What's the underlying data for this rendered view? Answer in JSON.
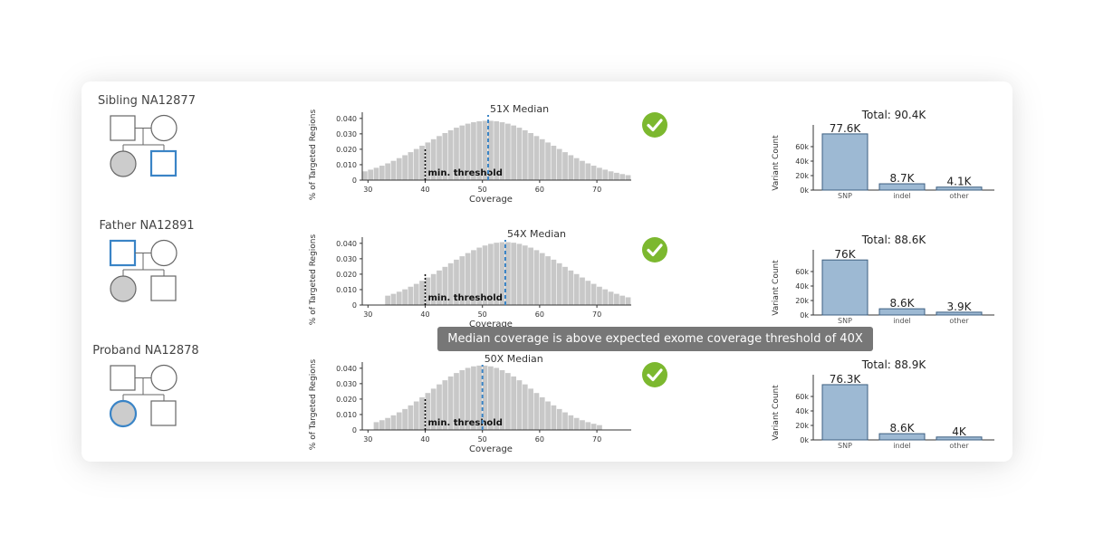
{
  "tooltip": "Median coverage is above expected exome coverage threshold of 40X",
  "colors": {
    "affected_fill": "#cccccc",
    "highlight_stroke": "#3a84c6",
    "pedigree_stroke": "#666666",
    "hist_bar": "#c8c8c8",
    "median_line": "#3a84c6",
    "threshold_line": "#000000",
    "check_green": "#7cb82f",
    "variant_bar_fill": "#9db9d3",
    "variant_bar_stroke": "#3d5f80"
  },
  "rows": [
    {
      "sample_label": "Sibling NA12877",
      "pedigree": {
        "highlight": "child-male"
      },
      "status_icon": "check-circle-icon",
      "coverage": {
        "median_label": "51X Median",
        "median": 51,
        "threshold_label": "min. threshold",
        "threshold": 40,
        "xlabel": "Coverage",
        "ylabel": "% of Targeted Regions",
        "xticks": [
          30,
          40,
          50,
          60,
          70
        ],
        "yticks": [
          "0",
          "0.010",
          "0.020",
          "0.030",
          "0.040"
        ],
        "xrange": [
          29,
          76
        ],
        "yrange": [
          0,
          0.044
        ],
        "bins": [
          29,
          75
        ],
        "mu": 51,
        "sigma": 11.0,
        "peak": 0.0385
      },
      "variants": {
        "total_label": "Total: 90.4K",
        "ylabel": "Variant Count",
        "yticks": [
          "0k",
          "20k",
          "40k",
          "60k"
        ],
        "ymax": 80000,
        "categories": [
          "SNP",
          "indel",
          "other"
        ],
        "values": [
          77600,
          8700,
          4100
        ],
        "value_labels": [
          "77.6K",
          "8.7K",
          "4.1K"
        ]
      }
    },
    {
      "sample_label": "Father NA12891",
      "pedigree": {
        "highlight": "father"
      },
      "status_icon": "check-circle-icon",
      "coverage": {
        "median_label": "54X Median",
        "median": 54,
        "threshold_label": "min. threshold",
        "threshold": 40,
        "xlabel": "Coverage",
        "ylabel": "% of Targeted Regions",
        "xticks": [
          30,
          40,
          50,
          60,
          70
        ],
        "yticks": [
          "0",
          "0.010",
          "0.020",
          "0.030",
          "0.040"
        ],
        "xrange": [
          29,
          76
        ],
        "yrange": [
          0,
          0.044
        ],
        "bins": [
          33,
          75
        ],
        "mu": 54,
        "sigma": 10.5,
        "peak": 0.0408
      },
      "variants": {
        "total_label": "Total: 88.6K",
        "ylabel": "Variant Count",
        "yticks": [
          "0k",
          "20k",
          "40k",
          "60k"
        ],
        "ymax": 80000,
        "categories": [
          "SNP",
          "indel",
          "other"
        ],
        "values": [
          76000,
          8600,
          3900
        ],
        "value_labels": [
          "76K",
          "8.6K",
          "3.9K"
        ]
      }
    },
    {
      "sample_label": "Proband NA12878",
      "pedigree": {
        "highlight": "child-female"
      },
      "status_icon": "check-circle-icon",
      "coverage": {
        "median_label": "50X Median",
        "median": 50,
        "threshold_label": "min. threshold",
        "threshold": 40,
        "xlabel": "Coverage",
        "ylabel": "% of Targeted Regions",
        "xticks": [
          30,
          40,
          50,
          60,
          70
        ],
        "yticks": [
          "0",
          "0.010",
          "0.020",
          "0.030",
          "0.040"
        ],
        "xrange": [
          29,
          76
        ],
        "yrange": [
          0,
          0.044
        ],
        "bins": [
          31,
          70
        ],
        "mu": 50,
        "sigma": 9.0,
        "peak": 0.0418
      },
      "variants": {
        "total_label": "Total: 88.9K",
        "ylabel": "Variant Count",
        "yticks": [
          "0k",
          "20k",
          "40k",
          "60k"
        ],
        "ymax": 80000,
        "categories": [
          "SNP",
          "indel",
          "other"
        ],
        "values": [
          76300,
          8600,
          4000
        ],
        "value_labels": [
          "76.3K",
          "8.6K",
          "4K"
        ]
      }
    }
  ],
  "chart_data": [
    {
      "type": "bar",
      "title": "51X Median",
      "xlabel": "Coverage",
      "ylabel": "% of Targeted Regions",
      "xlim": [
        29,
        76
      ],
      "ylim": [
        0,
        0.044
      ],
      "annotations": [
        "51X Median",
        "min. threshold"
      ]
    },
    {
      "type": "bar",
      "title": "Total: 90.4K",
      "ylabel": "Variant Count",
      "categories": [
        "SNP",
        "indel",
        "other"
      ],
      "values": [
        77600,
        8700,
        4100
      ],
      "ylim": [
        0,
        80000
      ]
    },
    {
      "type": "bar",
      "title": "54X Median",
      "xlabel": "Coverage",
      "ylabel": "% of Targeted Regions",
      "xlim": [
        29,
        76
      ],
      "ylim": [
        0,
        0.044
      ],
      "annotations": [
        "54X Median",
        "min. threshold"
      ]
    },
    {
      "type": "bar",
      "title": "Total: 88.6K",
      "ylabel": "Variant Count",
      "categories": [
        "SNP",
        "indel",
        "other"
      ],
      "values": [
        76000,
        8600,
        3900
      ],
      "ylim": [
        0,
        80000
      ]
    },
    {
      "type": "bar",
      "title": "50X Median",
      "xlabel": "Coverage",
      "ylabel": "% of Targeted Regions",
      "xlim": [
        29,
        76
      ],
      "ylim": [
        0,
        0.044
      ],
      "annotations": [
        "50X Median",
        "min. threshold"
      ]
    },
    {
      "type": "bar",
      "title": "Total: 88.9K",
      "ylabel": "Variant Count",
      "categories": [
        "SNP",
        "indel",
        "other"
      ],
      "values": [
        76300,
        8600,
        4000
      ],
      "ylim": [
        0,
        80000
      ]
    }
  ]
}
